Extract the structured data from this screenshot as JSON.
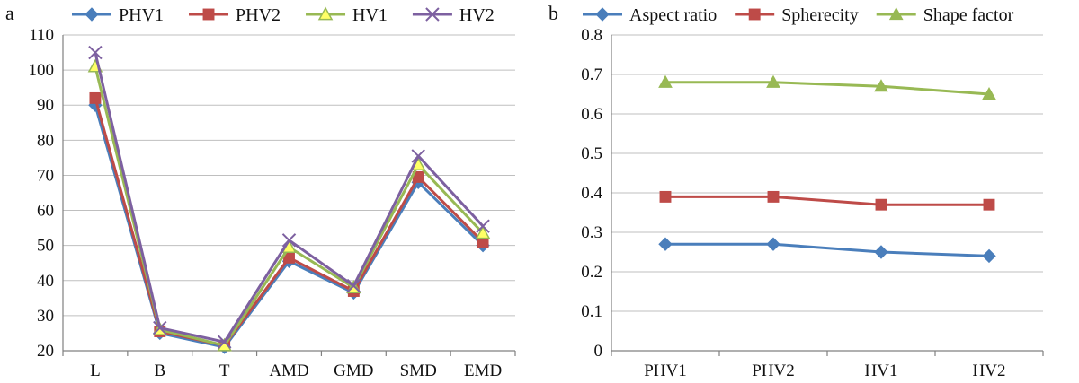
{
  "chart_data": [
    {
      "type": "line",
      "panel_label": "a",
      "categories": [
        "L",
        "B",
        "T",
        "AMD",
        "GMD",
        "SMD",
        "EMD"
      ],
      "ylim": [
        20,
        110
      ],
      "yticks": [
        "20",
        "30",
        "40",
        "50",
        "60",
        "70",
        "80",
        "90",
        "100",
        "110"
      ],
      "grid": true,
      "legend_position": "top",
      "series": [
        {
          "name": "PHV1",
          "color": "#4a7ebb",
          "marker": "diamond",
          "values": [
            90,
            25,
            21,
            45.5,
            36.5,
            68,
            50
          ]
        },
        {
          "name": "PHV2",
          "color": "#be4b48",
          "marker": "square",
          "values": [
            92,
            25.5,
            21.5,
            46.5,
            37,
            69.5,
            51
          ]
        },
        {
          "name": "HV1",
          "color": "#98b954",
          "marker": "triangle",
          "values": [
            101,
            26,
            21.5,
            49.5,
            38,
            73,
            53.5
          ]
        },
        {
          "name": "HV2",
          "color": "#7d60a0",
          "marker": "x",
          "values": [
            105,
            26.5,
            22.5,
            51.5,
            38.5,
            75.5,
            55.5
          ]
        }
      ]
    },
    {
      "type": "line",
      "panel_label": "b",
      "categories": [
        "PHV1",
        "PHV2",
        "HV1",
        "HV2"
      ],
      "ylim": [
        0,
        0.8
      ],
      "yticks": [
        "0",
        "0.1",
        "0.2",
        "0.3",
        "0.4",
        "0.5",
        "0.6",
        "0.7",
        "0.8"
      ],
      "grid": true,
      "legend_position": "top",
      "series": [
        {
          "name": "Aspect ratio",
          "color": "#4a7ebb",
          "marker": "diamond",
          "values": [
            0.27,
            0.27,
            0.25,
            0.24
          ]
        },
        {
          "name": "Spherecity",
          "color": "#be4b48",
          "marker": "square",
          "values": [
            0.39,
            0.39,
            0.37,
            0.37
          ]
        },
        {
          "name": "Shape factor",
          "color": "#98b954",
          "marker": "triangle",
          "values": [
            0.68,
            0.68,
            0.67,
            0.65
          ]
        }
      ]
    }
  ]
}
